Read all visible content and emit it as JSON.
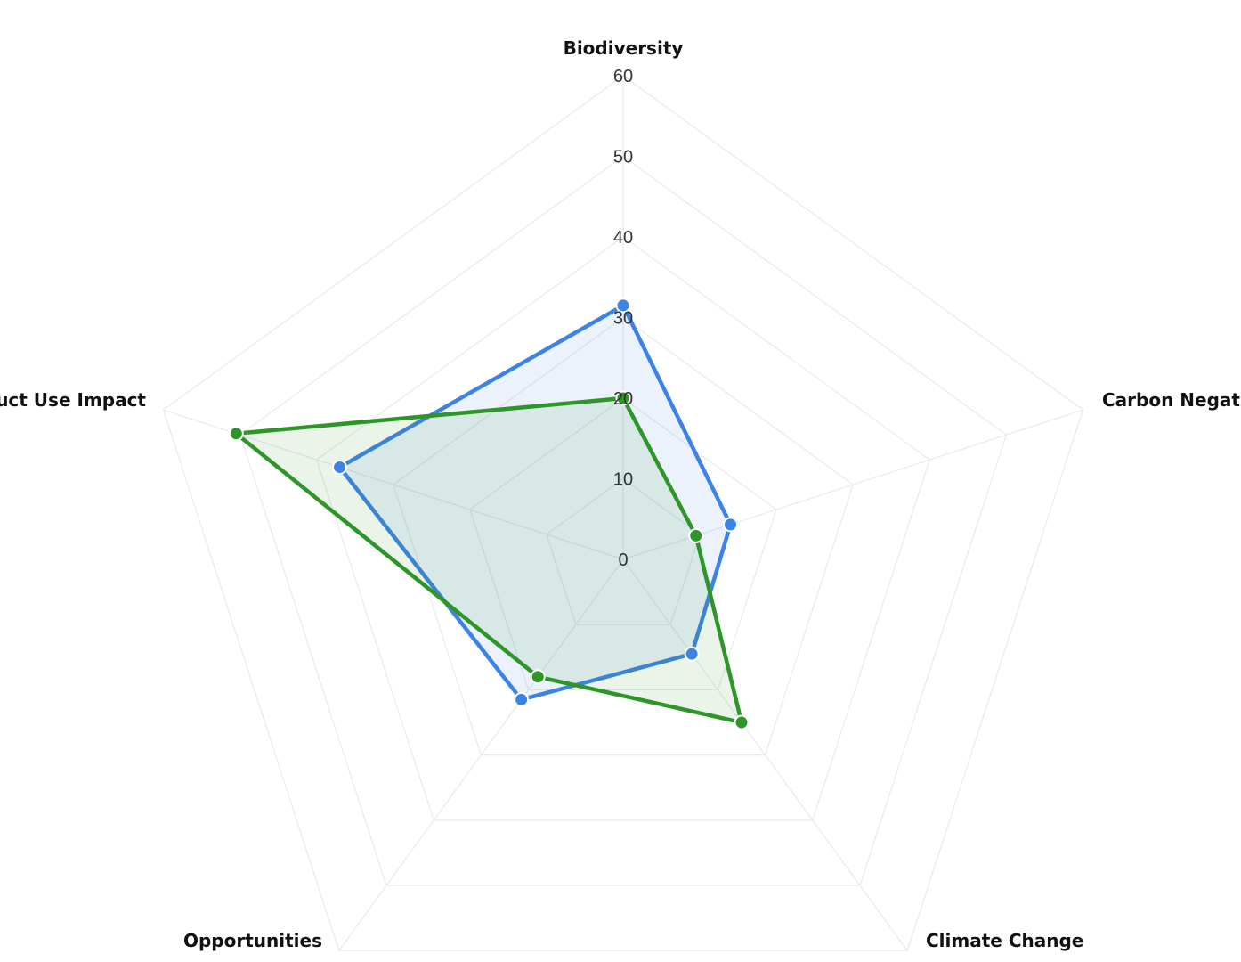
{
  "chart_data": {
    "type": "radar",
    "categories": [
      "Biodiversity",
      "Carbon Negative",
      "Climate Change",
      "Opportunities",
      "Product Use Impact"
    ],
    "rlim": [
      0,
      60
    ],
    "ticks": [
      "0",
      "10",
      "20",
      "30",
      "40",
      "50",
      "60"
    ],
    "grid": true,
    "series": [
      {
        "values": [
          31.5,
          14,
          14.5,
          21.5,
          37
        ],
        "color": "#3d83e6"
      },
      {
        "values": [
          20,
          9.5,
          25,
          18,
          50.5
        ],
        "color": "#2e9628"
      }
    ]
  }
}
